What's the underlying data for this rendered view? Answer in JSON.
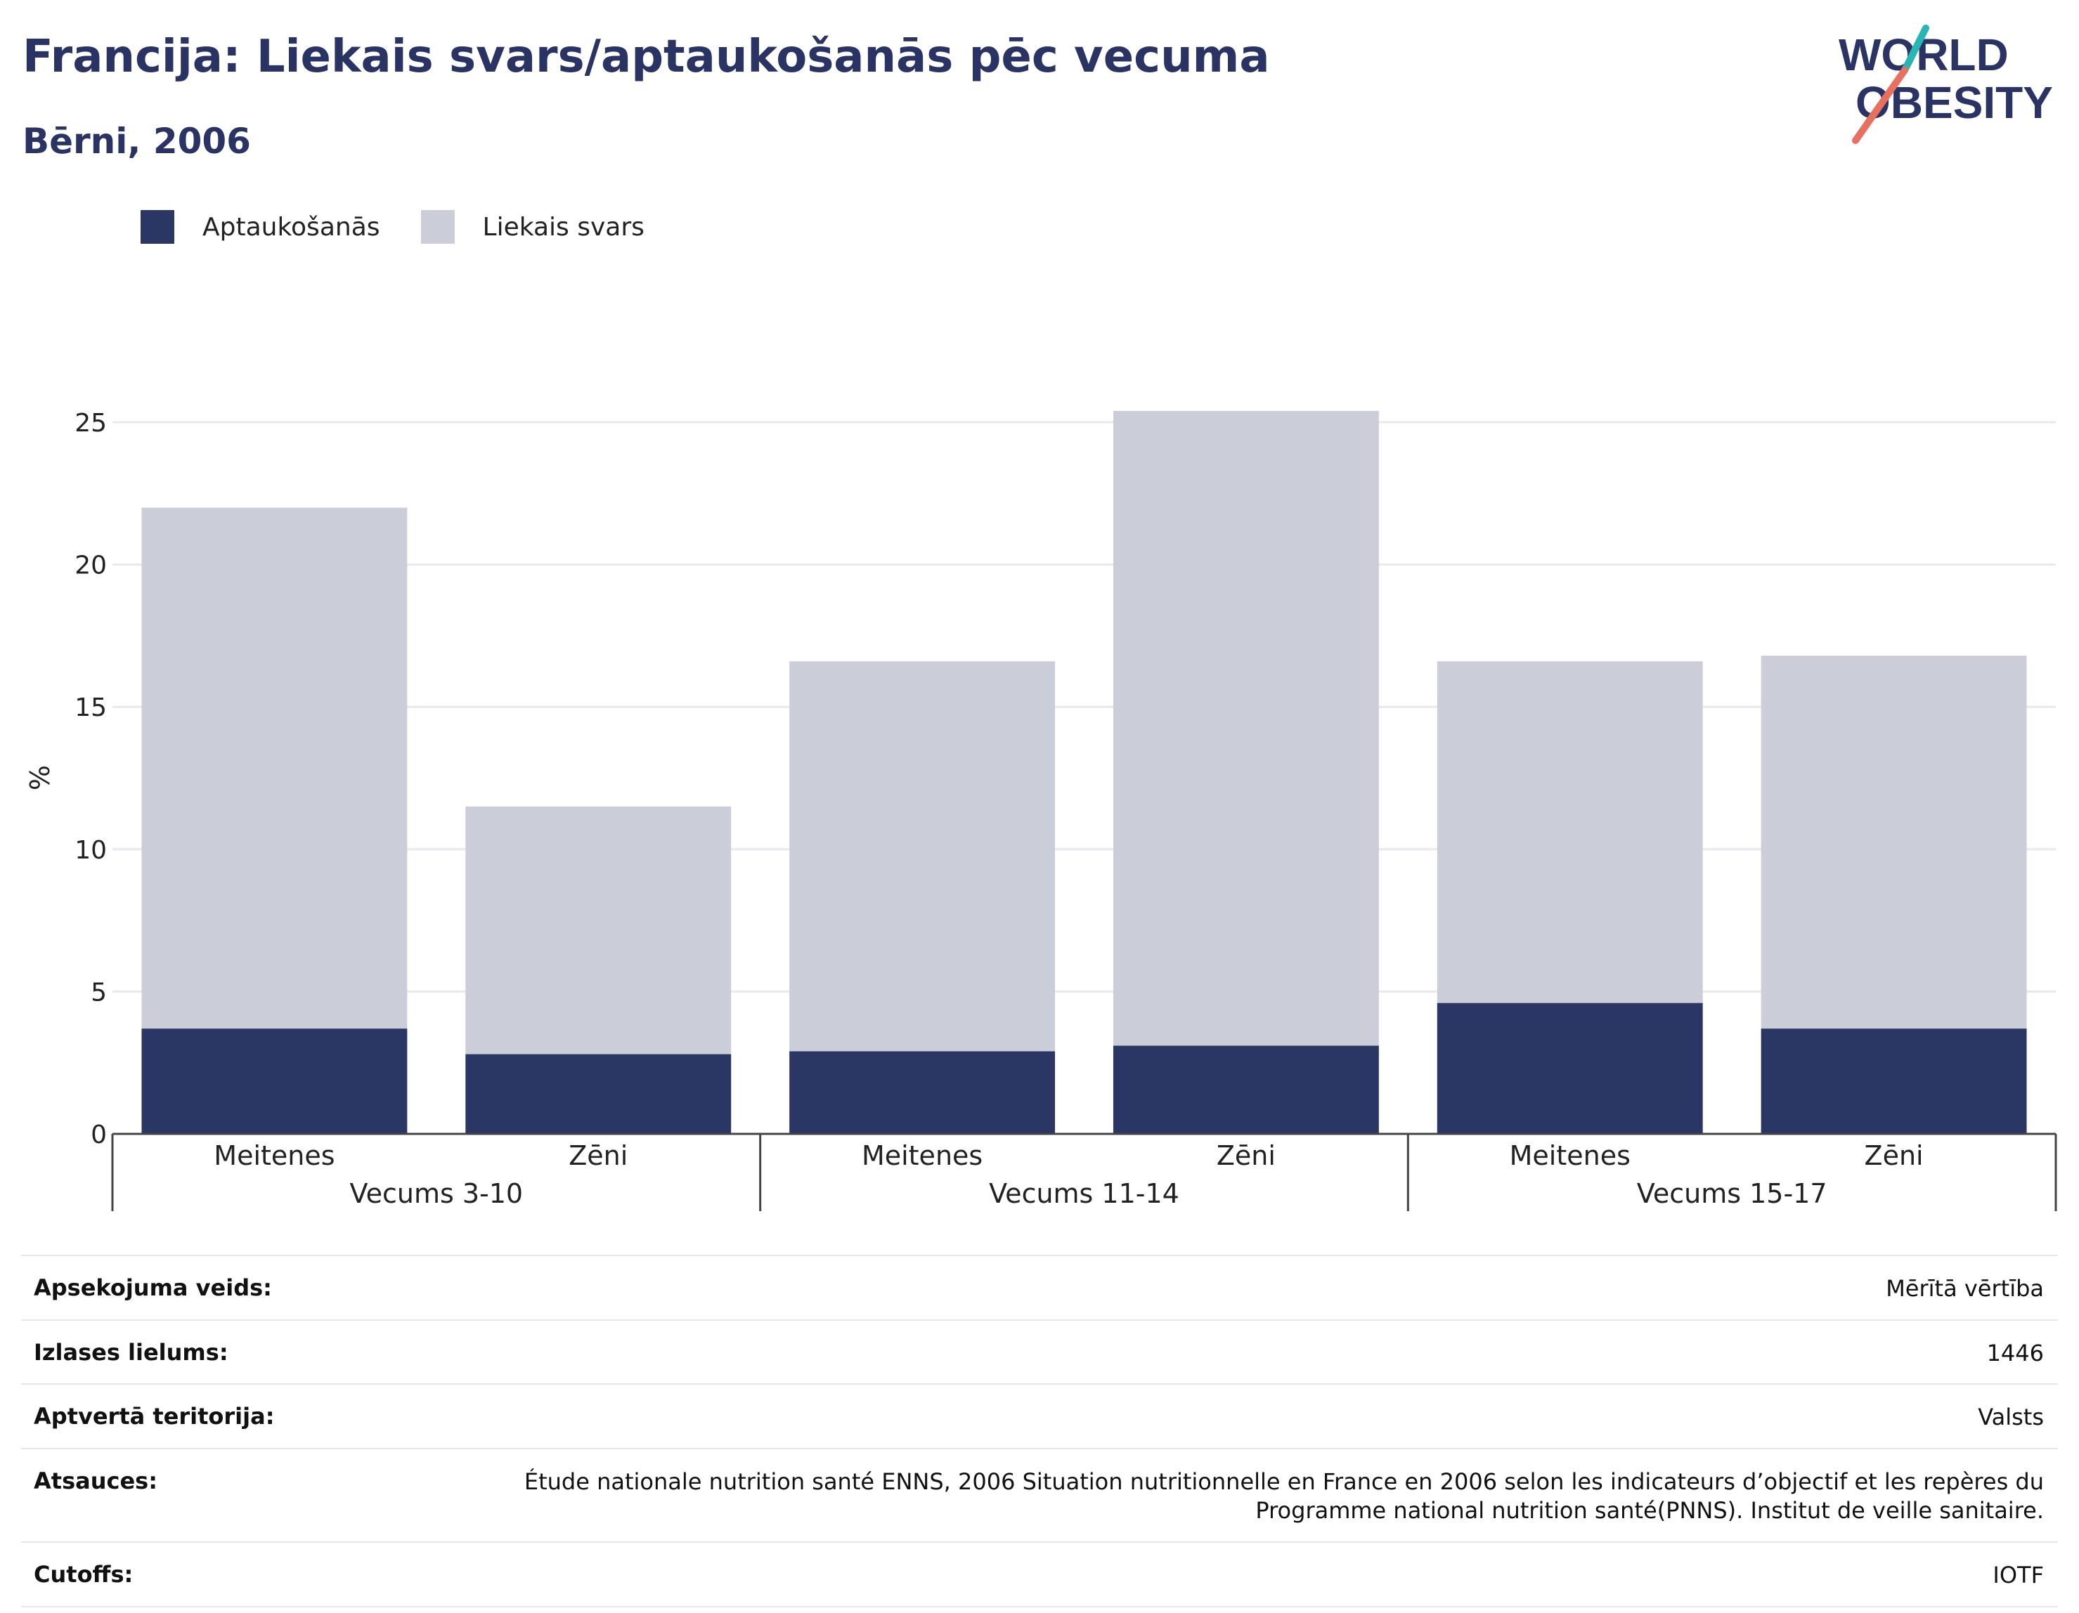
{
  "header": {
    "title": "Francija: Liekais svars/aptaukošanās pēc vecuma",
    "subtitle": "Bērni, 2006"
  },
  "logo": {
    "line1": "WORLD",
    "line2": "OBESITY"
  },
  "colors": {
    "obesity": "#2a3664",
    "overweight": "#cbcdd8",
    "text": "#2a3464",
    "logo_teal": "#2ab5b5",
    "logo_coral": "#e8705e"
  },
  "legend": {
    "items": [
      {
        "label": "Aptaukošanās",
        "color": "#2a3664"
      },
      {
        "label": "Liekais svars",
        "color": "#cbcdd8"
      }
    ]
  },
  "chart_data": {
    "type": "bar",
    "stacked": true,
    "ylabel": "%",
    "ylim": [
      0,
      27
    ],
    "yticks": [
      "0",
      "5",
      "10",
      "15",
      "20",
      "25"
    ],
    "groups": [
      "Vecums 3-10",
      "Vecums 11-14",
      "Vecums 15-17"
    ],
    "categories": [
      "Meitenes",
      "Zēni",
      "Meitenes",
      "Zēni",
      "Meitenes",
      "Zēni"
    ],
    "series": [
      {
        "name": "Aptaukošanās",
        "values": [
          3.7,
          2.8,
          2.9,
          3.1,
          4.6,
          3.7
        ]
      },
      {
        "name": "Liekais svars",
        "values": [
          18.3,
          8.7,
          13.7,
          22.3,
          12.0,
          13.1
        ]
      }
    ],
    "grid": true
  },
  "meta": {
    "rows": [
      {
        "label": "Apsekojuma veids:",
        "value": "Mērītā vērtība"
      },
      {
        "label": "Izlases lielums:",
        "value": "1446"
      },
      {
        "label": "Aptvertā teritorija:",
        "value": "Valsts"
      },
      {
        "label": "Atsauces:",
        "value": "Étude nationale nutrition santé ENNS, 2006 Situation nutritionnelle en France en 2006 selon les indicateurs d’objectif et les repères du Programme national nutrition santé(PNNS). Institut de veille sanitaire."
      },
      {
        "label": "Cutoffs:",
        "value": "IOTF"
      }
    ]
  }
}
